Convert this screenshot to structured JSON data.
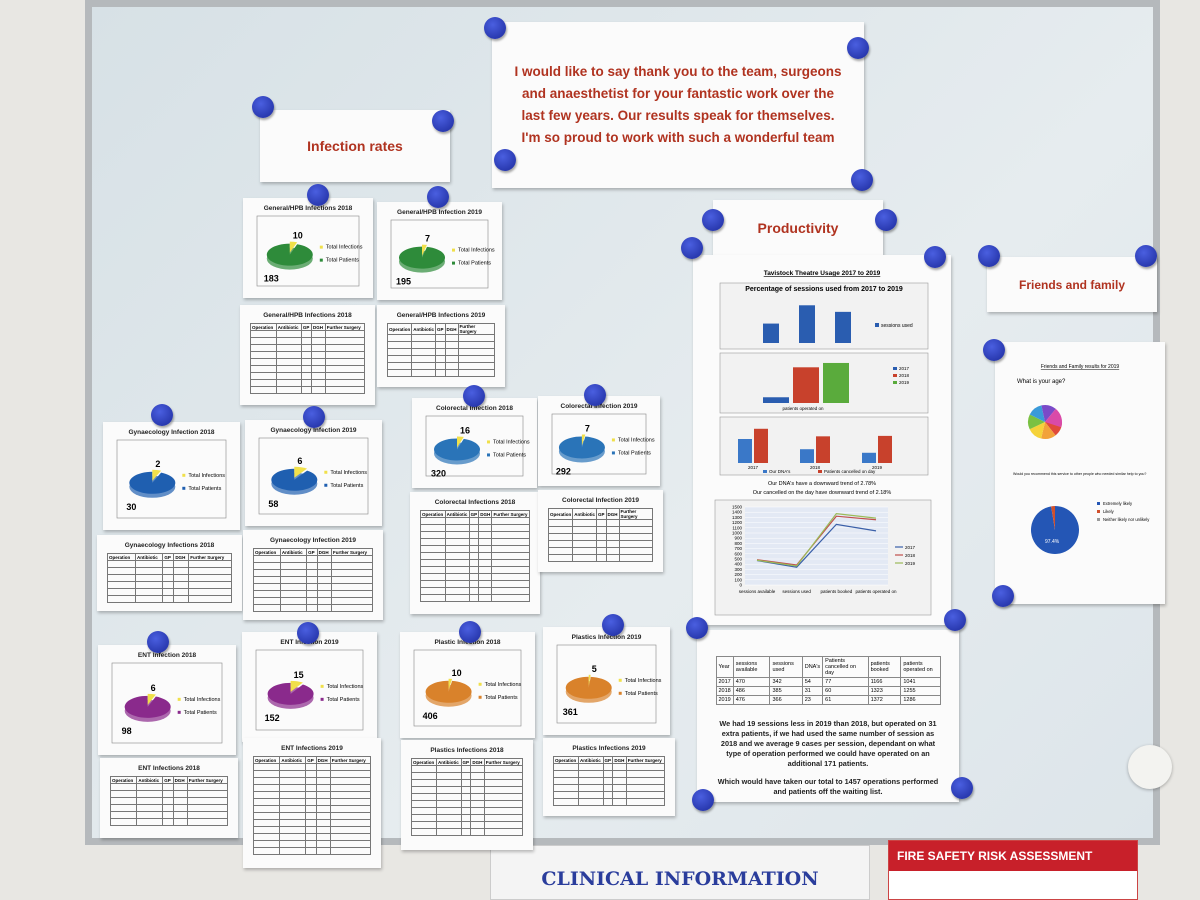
{
  "note": "I would like to say thank you to the team, surgeons and anaesthetist for your fantastic work over the last few years. Our results speak for themselves. I'm so proud to work with such a wonderful team",
  "headings": {
    "infection": "Infection rates",
    "productivity": "Productivity",
    "friends": "Friends and family"
  },
  "pie_legend": [
    "Total Infections",
    "Total Patients"
  ],
  "pies": [
    {
      "title": "General/HPB Infections 2018",
      "infections": 10,
      "patients": 183,
      "color": "#2e8b3a"
    },
    {
      "title": "General/HPB Infection 2019",
      "infections": 7,
      "patients": 195,
      "color": "#2e8b3a"
    },
    {
      "title": "Gynaecology Infection 2018",
      "infections": 2,
      "patients": 30,
      "color": "#1f5fb0"
    },
    {
      "title": "Gynaecology Infection 2019",
      "infections": 6,
      "patients": 58,
      "color": "#1f5fb0"
    },
    {
      "title": "Colorectal Infection 2018",
      "infections": 16,
      "patients": 320,
      "color": "#2a74b8"
    },
    {
      "title": "Colorectal Infection 2019",
      "infections": 7,
      "patients": 292,
      "color": "#2a74b8"
    },
    {
      "title": "ENT Infection 2018",
      "infections": 6,
      "patients": 98,
      "color": "#8a2a8c"
    },
    {
      "title": "ENT Infection 2019",
      "infections": 15,
      "patients": 152,
      "color": "#8a2a8c"
    },
    {
      "title": "Plastic Infection 2018",
      "infections": 10,
      "patients": 406,
      "color": "#d9822b"
    },
    {
      "title": "Plastics Infection 2019",
      "infections": 5,
      "patients": 361,
      "color": "#d9822b"
    }
  ],
  "table_header": [
    "Operation",
    "Antibiotic",
    "GP",
    "DGH",
    "Further Surgery"
  ],
  "tables": [
    "General/HPB Infections 2018",
    "General/HPB Infections 2019",
    "Colorectal Infections 2018",
    "Colorectal Infection 2019",
    "Gynaecology Infections 2018",
    "Gynaecology Infection 2019",
    "ENT Infections 2018",
    "ENT Infections 2019",
    "Plastics Infections 2018",
    "Plastics Infections 2019"
  ],
  "productivity": {
    "title": "Tavistock Theatre Usage 2017 to 2019",
    "percent_chart": {
      "title": "Percentage of sessions used from 2017 to 2019",
      "values": [
        72.8,
        79.2,
        76.9
      ],
      "ylim": [
        66,
        80
      ],
      "color": "#2a5db0",
      "legend": "sessions used"
    },
    "operated_chart": {
      "xlabel": "patients operated on",
      "ylim": [
        1000,
        1300
      ],
      "colors": [
        "#2a5db0",
        "#c8412c",
        "#5aab3c"
      ]
    },
    "cancel_chart": {
      "legend": [
        "Our DNA's",
        "Patients cancelled on day"
      ],
      "ylim": [
        0,
        90
      ],
      "colors": [
        "#3a78c8",
        "#c8412c"
      ]
    },
    "dna_text": "Our DNA's have a downward trend of 2.78%",
    "cancel_text": "Our cancelled on the day have downward trend of 2.18%",
    "line_chart": {
      "categories": [
        "sessions available",
        "sessions used",
        "patients booked",
        "patients operated on"
      ],
      "ylim": [
        0,
        1500
      ],
      "yticks": [
        0,
        100,
        200,
        300,
        400,
        500,
        600,
        700,
        800,
        900,
        1000,
        1100,
        1200,
        1300,
        1400,
        1500
      ],
      "colors": [
        "#3a5fa8",
        "#c0504d",
        "#9bbb59"
      ]
    },
    "table": {
      "header": [
        "Year",
        "sessions available",
        "sessions used",
        "DNA's",
        "Patients cancelled on day",
        "patients booked",
        "patients operated on"
      ],
      "rows": [
        [
          2017,
          470,
          342,
          54,
          77,
          1166,
          1041
        ],
        [
          2018,
          486,
          385,
          31,
          60,
          1323,
          1255
        ],
        [
          2019,
          476,
          366,
          23,
          61,
          1372,
          1286
        ]
      ]
    },
    "paragraph1": "We had 19 sessions less in 2019 than 2018, but operated on 31 extra patients, if we had used the same number of session as 2018 and we average 9 cases per session, dependant on what type of operation performed we could have operated on an additional 171 patients.",
    "paragraph2": "Which would have taken our total to 1457 operations performed and patients off the waiting list."
  },
  "friends": {
    "title": "Friends and Family results for 2019",
    "question1": "What is your age?",
    "question2": "Would you recommend this service to other people who needed similar help to you?",
    "legend": [
      "Extremely likely",
      "Likely",
      "Neither likely nor unlikely"
    ],
    "colors": [
      "#2456b5",
      "#d1502c",
      "#9a9a9a"
    ],
    "value": 97.4,
    "value_label": "97.4%"
  },
  "footer": {
    "clinical": "CLINICAL INFORMATION",
    "fire": "FIRE SAFETY RISK ASSESSMENT"
  }
}
